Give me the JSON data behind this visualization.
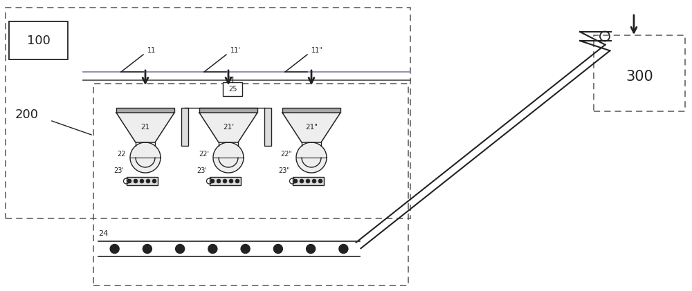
{
  "bg_color": "#ffffff",
  "line_color": "#222222",
  "dashed_color": "#555555",
  "label_100": "100",
  "label_200": "200",
  "label_300": "300",
  "label_11": "11",
  "label_11p": "11'",
  "label_11pp": "11\"",
  "label_21": "21",
  "label_21p": "21'",
  "label_21pp": "21\"",
  "label_22": "22",
  "label_22p": "22'",
  "label_22pp": "22\"",
  "label_23a": "23'",
  "label_23b": "23'",
  "label_23c": "23\"",
  "label_24": "24",
  "label_25": "25",
  "fig_w": 10.0,
  "fig_h": 4.21,
  "dpi": 100
}
